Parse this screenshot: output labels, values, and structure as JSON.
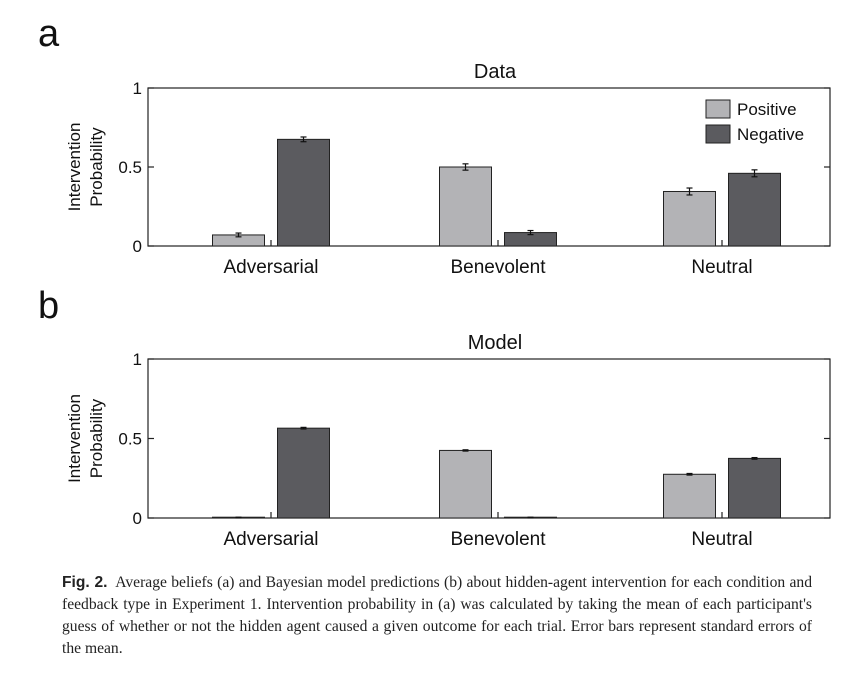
{
  "caption": {
    "label": "Fig. 2.",
    "text": "Average beliefs (a) and Bayesian model predictions (b) about hidden-agent intervention for each condition and feedback type in Experiment 1. Intervention probability in (a) was calculated by taking the mean of each participant's guess of whether or not the hidden agent caused a given outcome for each trial. Error bars represent standard errors of the mean."
  },
  "colors": {
    "positive": "#b3b3b6",
    "negative": "#5b5b5f"
  },
  "chart_data": [
    {
      "panel": "a",
      "type": "bar",
      "title": "Data",
      "ylabel": [
        "Intervention",
        "Probability"
      ],
      "ylim": [
        0,
        1
      ],
      "yticks": [
        "0",
        "0.5",
        "1"
      ],
      "categories": [
        "Adversarial",
        "Benevolent",
        "Neutral"
      ],
      "legend": "top-right",
      "series": [
        {
          "name": "Positive",
          "values": [
            0.07,
            0.5,
            0.345
          ],
          "errors": [
            0.012,
            0.02,
            0.022
          ]
        },
        {
          "name": "Negative",
          "values": [
            0.675,
            0.085,
            0.46
          ],
          "errors": [
            0.015,
            0.013,
            0.022
          ]
        }
      ]
    },
    {
      "panel": "b",
      "type": "bar",
      "title": "Model",
      "ylabel": [
        "Intervention",
        "Probability"
      ],
      "ylim": [
        0,
        1
      ],
      "yticks": [
        "0",
        "0.5",
        "1"
      ],
      "categories": [
        "Adversarial",
        "Benevolent",
        "Neutral"
      ],
      "series": [
        {
          "name": "Positive",
          "values": [
            0.003,
            0.425,
            0.275
          ],
          "errors": [
            0.002,
            0.004,
            0.005
          ]
        },
        {
          "name": "Negative",
          "values": [
            0.565,
            0.003,
            0.375
          ],
          "errors": [
            0.005,
            0.002,
            0.005
          ]
        }
      ]
    }
  ]
}
